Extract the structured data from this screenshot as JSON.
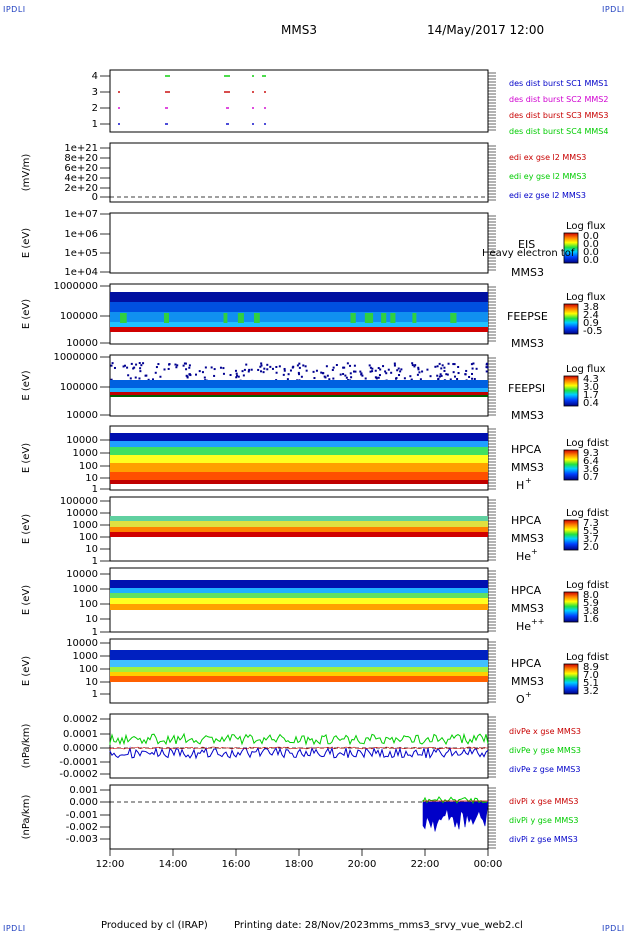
{
  "header": {
    "corner_tl": "IPDLI",
    "corner_tr": "IPDLI",
    "corner_bl": "IPDLI",
    "corner_br": "IPDLI",
    "spacecraft": "MMS3",
    "datetime": "14/May/2017 12:00"
  },
  "footer": {
    "producer": "Produced by cl (IRAP)",
    "printing": "Printing date: 28/Nov/2023",
    "filename": "mms_mms3_srvy_vue_web2.cl"
  },
  "colors": {
    "blue": "#0000c8",
    "red": "#c80000",
    "green": "#00cc00",
    "magenta": "#d000d0"
  },
  "chart_data": [
    {
      "type": "scatter",
      "panel": "burst",
      "ylim": [
        0.5,
        4.5
      ],
      "y_ticks": [
        "1",
        "2",
        "3",
        "4"
      ],
      "series": [
        {
          "name": "des dist burst SC1 MMS1",
          "color": "#0000c8",
          "y": 1
        },
        {
          "name": "des dist burst SC2 MMS2",
          "color": "#d000d0",
          "y": 2
        },
        {
          "name": "des dist burst SC3 MMS3",
          "color": "#c80000",
          "y": 3
        },
        {
          "name": "des dist burst SC4 MMS4",
          "color": "#00cc00",
          "y": 4
        }
      ]
    },
    {
      "type": "line",
      "panel": "edi",
      "ylabel": "(mV/m)",
      "y_ticks": [
        "1e+21",
        "8e+20",
        "6e+20",
        "4e+20",
        "2e+20",
        "0"
      ],
      "series": [
        {
          "name": "edi ex gse l2 MMS3",
          "color": "#c80000"
        },
        {
          "name": "edi ey gse l2 MMS3",
          "color": "#00cc00"
        },
        {
          "name": "edi ez gse l2 MMS3",
          "color": "#0000c8"
        }
      ]
    },
    {
      "type": "heatmap",
      "panel": "eis",
      "ylabel": "E (eV)",
      "y_ticks": [
        "1e+07",
        "1e+06",
        "1e+05",
        "1e+04"
      ],
      "instrument": [
        "EIS",
        "MMS3"
      ],
      "overlay_text": "Heavy electron tof",
      "colorbar_title": "Log flux",
      "colorbar_ticks": [
        "0.0",
        "0.0",
        "0.0",
        "0.0"
      ]
    },
    {
      "type": "heatmap",
      "panel": "feepse",
      "ylabel": "E (eV)",
      "y_ticks": [
        "1000000",
        "100000",
        "10000"
      ],
      "instrument": [
        "FEEPSE",
        "MMS3"
      ],
      "colorbar_title": "Log flux",
      "colorbar_ticks": [
        "3.8",
        "2.4",
        "0.9",
        "-0.5"
      ]
    },
    {
      "type": "heatmap",
      "panel": "feepsi",
      "ylabel": "E (eV)",
      "y_ticks": [
        "1000000",
        "100000",
        "10000"
      ],
      "instrument": [
        "FEEPSI",
        "MMS3"
      ],
      "colorbar_title": "Log flux",
      "colorbar_ticks": [
        "4.3",
        "3.0",
        "1.7",
        "0.4"
      ]
    },
    {
      "type": "heatmap",
      "panel": "hpca_h",
      "ylabel": "E (eV)",
      "y_ticks": [
        "10000",
        "1000",
        "100",
        "10",
        "1"
      ],
      "instrument": [
        "HPCA",
        "MMS3"
      ],
      "species": "H",
      "charge": "+",
      "colorbar_title": "Log fdist",
      "colorbar_ticks": [
        "9.3",
        "6.4",
        "3.6",
        "0.7"
      ]
    },
    {
      "type": "heatmap",
      "panel": "hpca_he",
      "ylabel": "E (eV)",
      "y_ticks": [
        "100000",
        "10000",
        "1000",
        "100",
        "10",
        "1"
      ],
      "instrument": [
        "HPCA",
        "MMS3"
      ],
      "species": "He",
      "charge": "+",
      "colorbar_title": "Log fdist",
      "colorbar_ticks": [
        "7.3",
        "5.5",
        "3.7",
        "2.0"
      ]
    },
    {
      "type": "heatmap",
      "panel": "hpca_hepp",
      "ylabel": "E (eV)",
      "y_ticks": [
        "10000",
        "1000",
        "100",
        "10",
        "1"
      ],
      "instrument": [
        "HPCA",
        "MMS3"
      ],
      "species": "He",
      "charge": "++",
      "colorbar_title": "Log fdist",
      "colorbar_ticks": [
        "8.0",
        "5.9",
        "3.8",
        "1.6"
      ]
    },
    {
      "type": "heatmap",
      "panel": "hpca_o",
      "ylabel": "E (eV)",
      "y_ticks": [
        "10000",
        "1000",
        "100",
        "10",
        "1"
      ],
      "instrument": [
        "HPCA",
        "MMS3"
      ],
      "species": "O",
      "charge": "+",
      "colorbar_title": "Log fdist",
      "colorbar_ticks": [
        "8.9",
        "7.0",
        "5.1",
        "3.2"
      ]
    },
    {
      "type": "line",
      "panel": "divpe",
      "ylabel": "(nPa/km)",
      "y_ticks": [
        "0.0002",
        "0.0001",
        "0.0000",
        "-0.0001",
        "-0.0002"
      ],
      "ylim": [
        -0.00025,
        0.00022
      ],
      "series": [
        {
          "name": "divPe x gse MMS3",
          "color": "#c80000"
        },
        {
          "name": "divPe y gse MMS3",
          "color": "#00cc00"
        },
        {
          "name": "divPe z gse MMS3",
          "color": "#0000c8"
        }
      ]
    },
    {
      "type": "line",
      "panel": "divpi",
      "ylabel": "(nPa/km)",
      "y_ticks": [
        "0.001",
        "0.000",
        "-0.001",
        "-0.002",
        "-0.003"
      ],
      "ylim": [
        -0.0034,
        0.0012
      ],
      "series": [
        {
          "name": "divPi x gse MMS3",
          "color": "#c80000"
        },
        {
          "name": "divPi y gse MMS3",
          "color": "#00cc00"
        },
        {
          "name": "divPi z gse MMS3",
          "color": "#0000c8"
        }
      ]
    }
  ],
  "x_axis": {
    "ticks": [
      "12:00",
      "14:00",
      "16:00",
      "18:00",
      "20:00",
      "22:00",
      "00:00"
    ]
  }
}
